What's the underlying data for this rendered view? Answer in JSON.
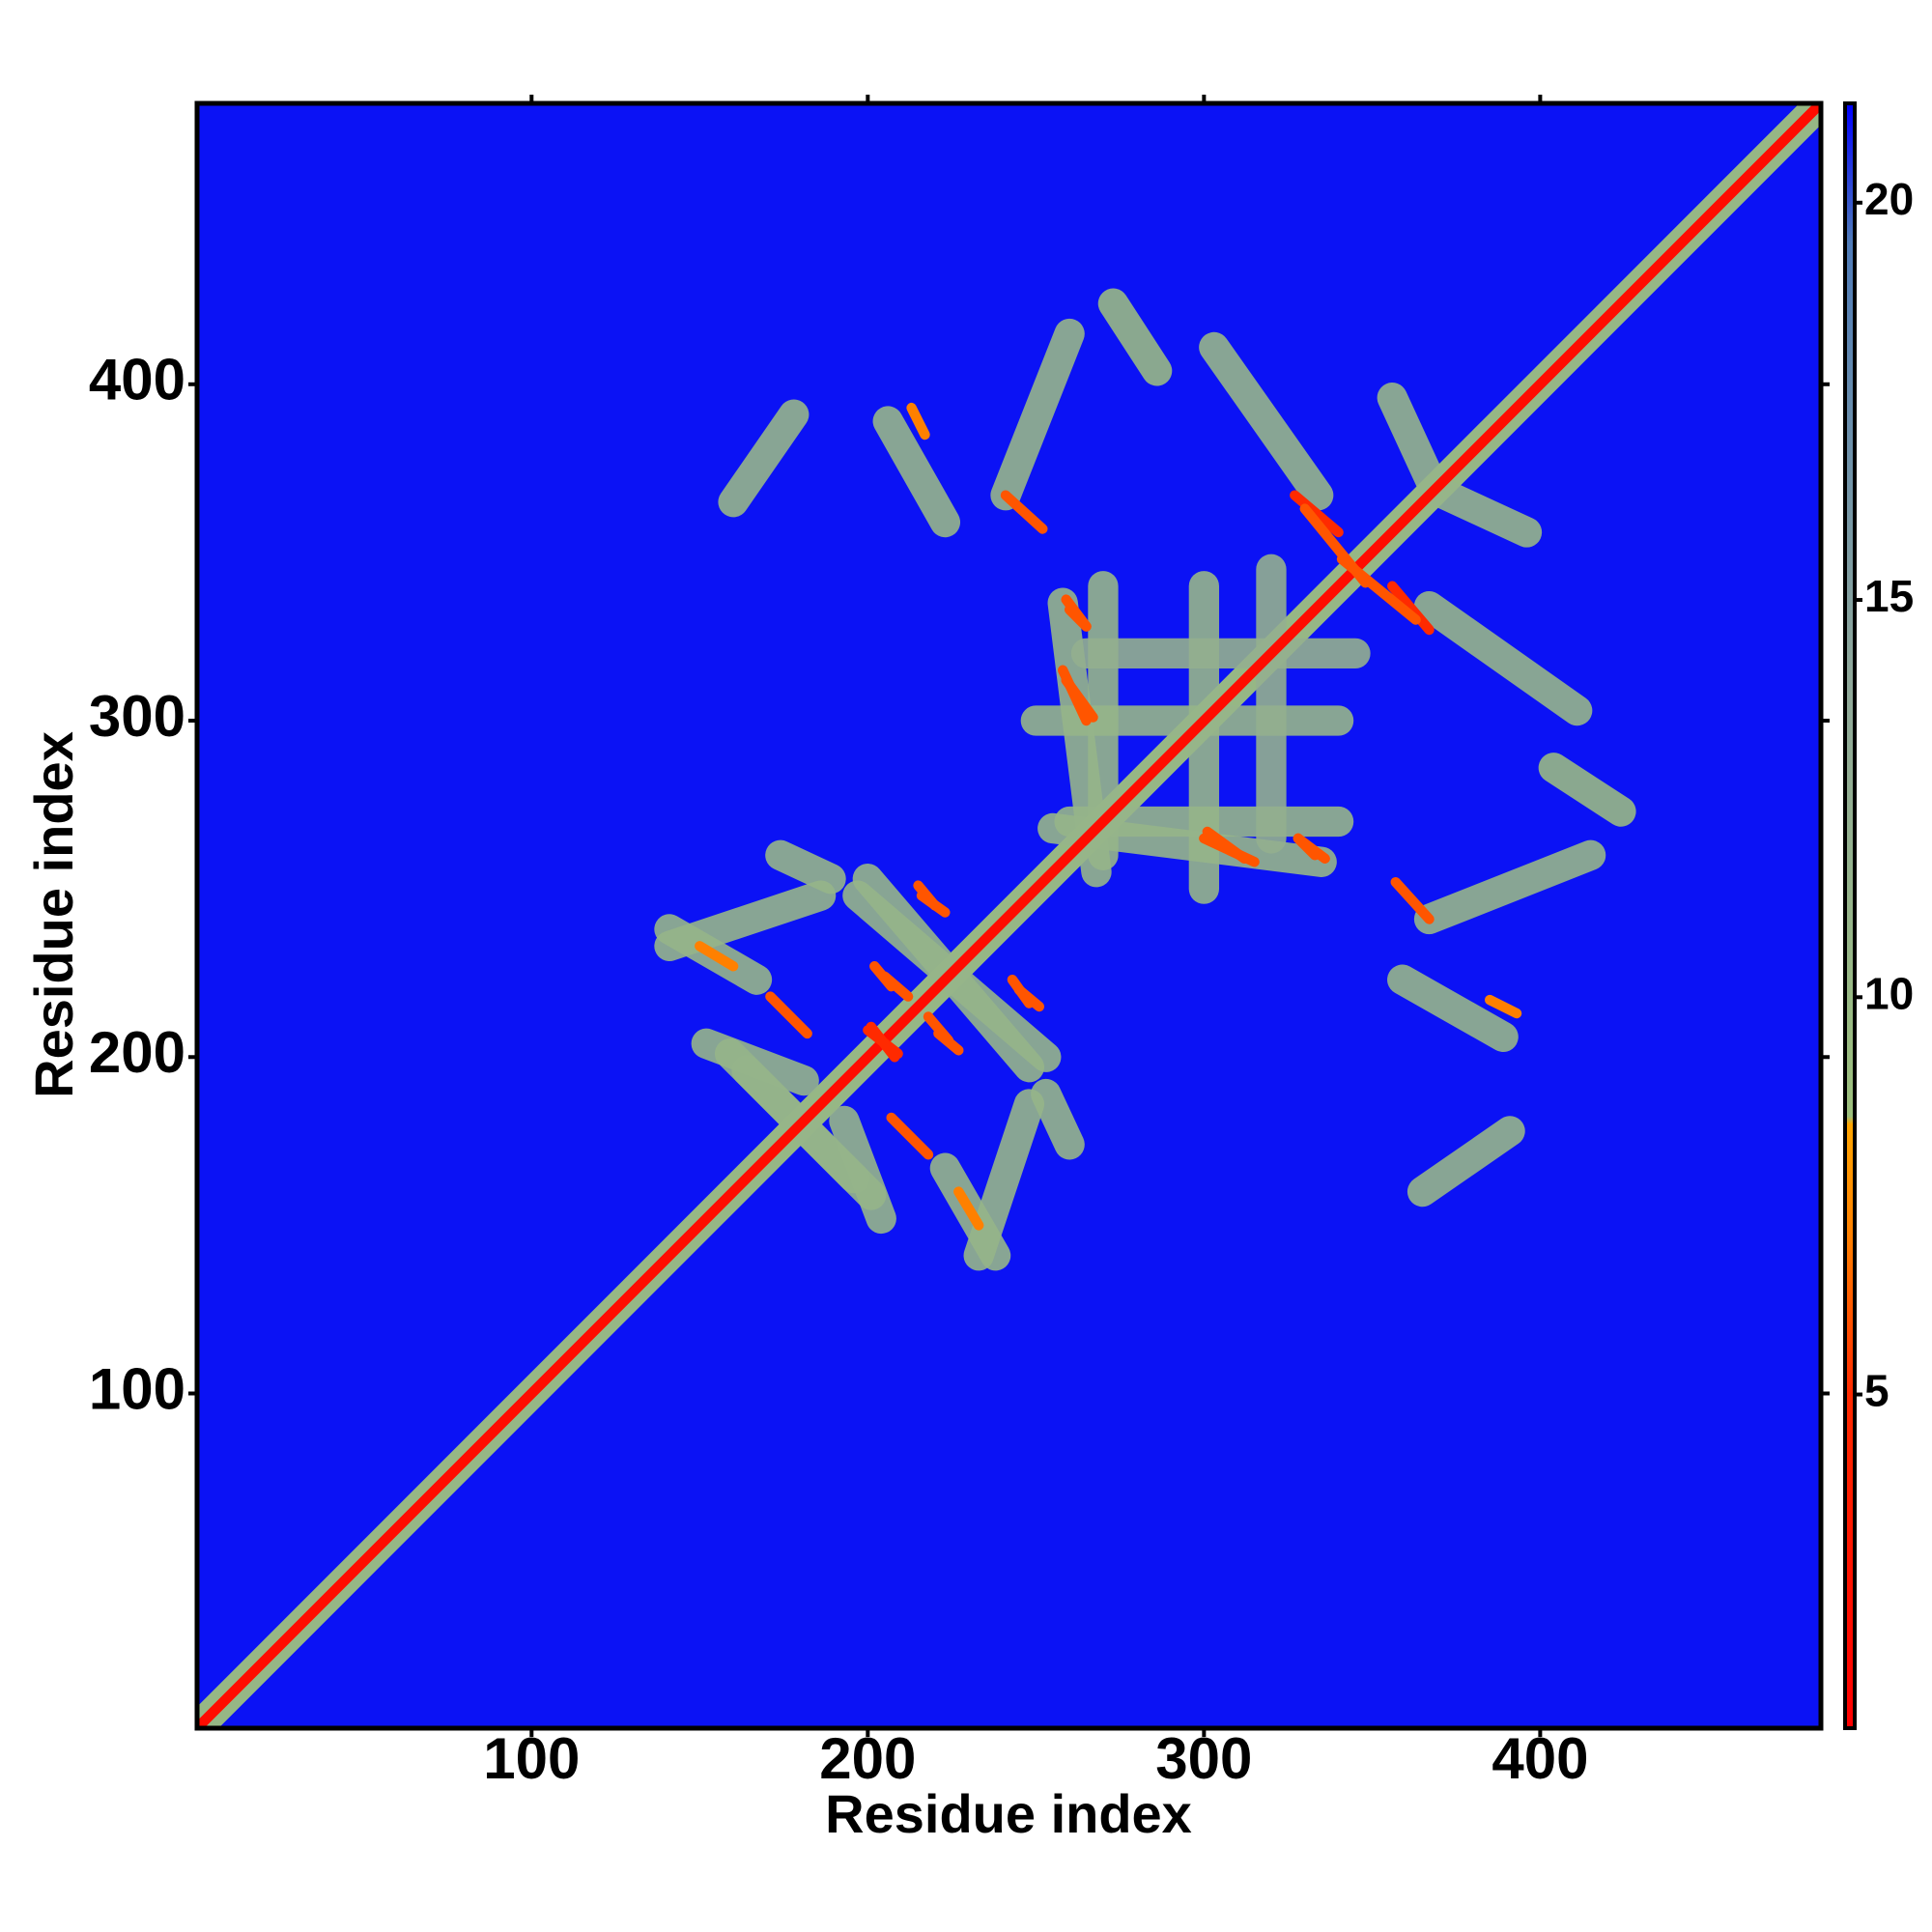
{
  "chart_data": {
    "type": "heatmap",
    "x_label": "Residue index",
    "y_label": "Residue index",
    "xlim": [
      0.5,
      483.5
    ],
    "ylim": [
      0.5,
      483.5
    ],
    "xticks": [
      100,
      200,
      300,
      400
    ],
    "yticks": [
      100,
      200,
      300,
      400
    ],
    "zlim": [
      0.8,
      21.25
    ],
    "zticks": [
      5,
      10,
      15,
      20
    ],
    "colorscale": [
      [
        0.8,
        "#ff0000"
      ],
      [
        5,
        "#ff2a00"
      ],
      [
        7,
        "#ff8000"
      ],
      [
        8.4,
        "#ffa500"
      ],
      [
        8.5,
        "#9cbf7c"
      ],
      [
        14,
        "#8fa89a"
      ],
      [
        19.5,
        "#4f7bb8"
      ],
      [
        21.25,
        "#0000ff"
      ]
    ],
    "background_value": 21,
    "symmetric": true,
    "contacts": [
      {
        "x": [
          1,
          483
        ],
        "y": [
          1,
          483
        ],
        "value": 10
      },
      {
        "x": [
          160,
          178
        ],
        "y": [
          365,
          391
        ],
        "value": 11
      },
      {
        "x": [
          206,
          223
        ],
        "y": [
          389,
          359
        ],
        "value": 11
      },
      {
        "x": [
          241,
          260
        ],
        "y": [
          367,
          415
        ],
        "value": 11
      },
      {
        "x": [
          273,
          286
        ],
        "y": [
          424,
          404
        ],
        "value": 10
      },
      {
        "x": [
          303,
          334
        ],
        "y": [
          411,
          367
        ],
        "value": 11
      },
      {
        "x": [
          356,
          368
        ],
        "y": [
          396,
          370
        ],
        "value": 11
      },
      {
        "x": [
          258,
          268
        ],
        "y": [
          335,
          255
        ],
        "value": 11
      },
      {
        "x": [
          300,
          300
        ],
        "y": [
          340,
          250
        ],
        "value": 11
      },
      {
        "x": [
          260,
          340
        ],
        "y": [
          270,
          270
        ],
        "value": 11
      },
      {
        "x": [
          265,
          345
        ],
        "y": [
          320,
          320
        ],
        "value": 12
      },
      {
        "x": [
          141,
          186
        ],
        "y": [
          233,
          248
        ],
        "value": 11
      },
      {
        "x": [
          197,
          253
        ],
        "y": [
          248,
          200
        ],
        "value": 11
      },
      {
        "x": [
          164,
          201
        ],
        "y": [
          196,
          159
        ],
        "value": 11
      },
      {
        "x": [
          193,
          204
        ],
        "y": [
          181,
          152
        ],
        "value": 11
      },
      {
        "x": [
          223,
          238
        ],
        "y": [
          167,
          141
        ],
        "value": 11
      },
      {
        "x": [
          253,
          260
        ],
        "y": [
          189,
          174
        ],
        "value": 11
      },
      {
        "x": [
          1,
          483
        ],
        "y": [
          1,
          483
        ],
        "value": 2
      },
      {
        "x": [
          241,
          252
        ],
        "y": [
          367,
          357
        ],
        "value": 6
      },
      {
        "x": [
          327,
          340
        ],
        "y": [
          367,
          356
        ],
        "value": 5
      },
      {
        "x": [
          341,
          363
        ],
        "y": [
          348,
          330
        ],
        "value": 6
      },
      {
        "x": [
          260,
          265
        ],
        "y": [
          333,
          328
        ],
        "value": 6
      },
      {
        "x": [
          258,
          265
        ],
        "y": [
          315,
          300
        ],
        "value": 6
      },
      {
        "x": [
          301,
          312
        ],
        "y": [
          267,
          259
        ],
        "value": 6
      },
      {
        "x": [
          328,
          336
        ],
        "y": [
          265,
          259
        ],
        "value": 6
      },
      {
        "x": [
          171,
          182
        ],
        "y": [
          218,
          207
        ],
        "value": 6
      },
      {
        "x": [
          201,
          208
        ],
        "y": [
          209,
          200
        ],
        "value": 5
      },
      {
        "x": [
          205,
          212
        ],
        "y": [
          224,
          218
        ],
        "value": 6
      },
      {
        "x": [
          216,
          223
        ],
        "y": [
          248,
          243
        ],
        "value": 6
      },
      {
        "x": [
          245,
          251
        ],
        "y": [
          220,
          215
        ],
        "value": 6
      },
      {
        "x": [
          221,
          227
        ],
        "y": [
          207,
          202
        ],
        "value": 6
      },
      {
        "x": [
          227,
          233
        ],
        "y": [
          160,
          150
        ],
        "value": 7
      },
      {
        "x": [
          213,
          217
        ],
        "y": [
          393,
          385
        ],
        "value": 7
      }
    ]
  }
}
